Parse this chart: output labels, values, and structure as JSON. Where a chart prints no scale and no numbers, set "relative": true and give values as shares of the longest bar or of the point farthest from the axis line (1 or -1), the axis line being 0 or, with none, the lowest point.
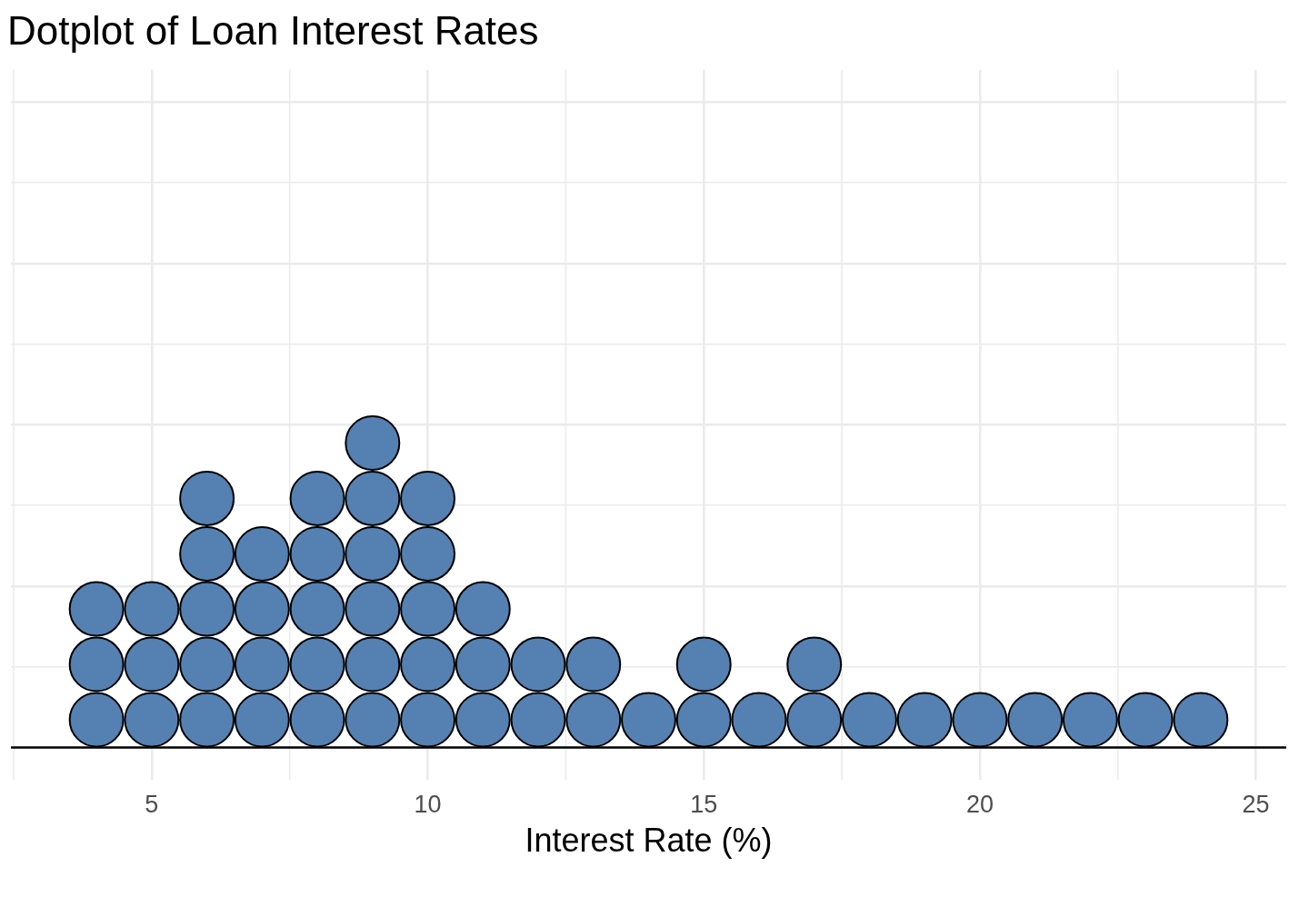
{
  "chart_data": {
    "type": "scatter",
    "title": "Dotplot of Loan Interest Rates",
    "xlabel": "Interest Rate (%)",
    "x": [
      4,
      4,
      4,
      5,
      5,
      5,
      6,
      6,
      6,
      6,
      6,
      7,
      7,
      7,
      7,
      8,
      8,
      8,
      8,
      8,
      9,
      9,
      9,
      9,
      9,
      9,
      10,
      10,
      10,
      10,
      10,
      11,
      11,
      11,
      12,
      12,
      13,
      13,
      14,
      15,
      15,
      16,
      17,
      17,
      18,
      19,
      20,
      21,
      22,
      23,
      24
    ],
    "values": [
      0.091,
      0.273,
      0.455,
      0.091,
      0.273,
      0.455,
      0.091,
      0.273,
      0.455,
      0.636,
      0.818,
      0.091,
      0.273,
      0.455,
      0.636,
      0.091,
      0.273,
      0.455,
      0.636,
      0.818,
      0.091,
      0.273,
      0.455,
      0.636,
      0.818,
      1,
      0.091,
      0.273,
      0.455,
      0.636,
      0.818,
      0.091,
      0.273,
      0.455,
      0.091,
      0.273,
      0.091,
      0.273,
      0.091,
      0.091,
      0.273,
      0.091,
      0.091,
      0.273,
      0.091,
      0.091,
      0.091,
      0.091,
      0.091,
      0.091,
      0.091
    ],
    "color": "#5481b1",
    "relative": true,
    "xlim": [
      2.45,
      25.55
    ],
    "xticks": [
      5,
      10,
      15,
      20,
      25
    ],
    "grid": true,
    "marker": "circle",
    "tick_labels": "x"
  }
}
